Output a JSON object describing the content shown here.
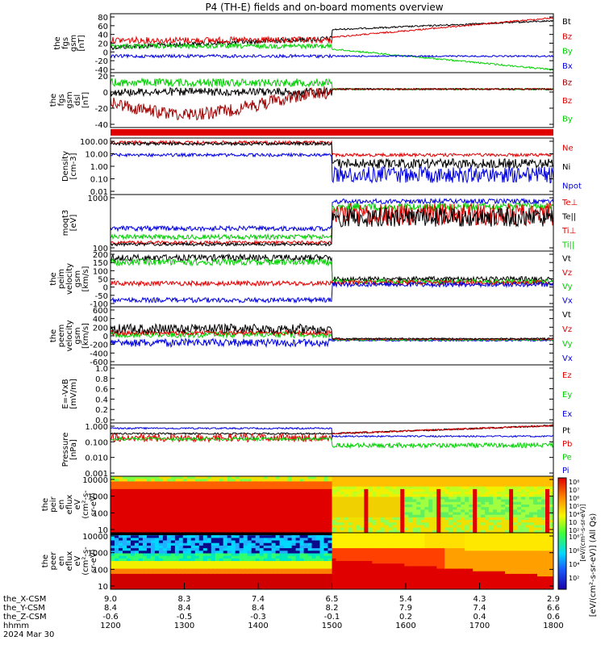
{
  "title": "P4 (TH-E) fields and on-board moments overview",
  "colors": {
    "black": "#000000",
    "red": "#e00000",
    "green": "#00d000",
    "blue": "#0000e0",
    "darkred": "#a00000",
    "frame": "#000000"
  },
  "x_axis": {
    "rows": [
      {
        "label": "the_X-CSM",
        "values": [
          "9.0",
          "8.3",
          "7.4",
          "6.5",
          "5.4",
          "4.3",
          "2.9"
        ]
      },
      {
        "label": "the_Y-CSM",
        "values": [
          "8.4",
          "8.4",
          "8.4",
          "8.2",
          "7.9",
          "7.4",
          "6.6"
        ]
      },
      {
        "label": "the_Z-CSM",
        "values": [
          "-0.6",
          "-0.5",
          "-0.3",
          "-0.1",
          "0.2",
          "0.4",
          "0.6"
        ]
      },
      {
        "label": "hhmm",
        "values": [
          "1200",
          "1300",
          "1400",
          "1500",
          "1600",
          "1700",
          "1800"
        ]
      }
    ],
    "date": "2024 Mar 30",
    "hours": [
      12,
      13,
      14,
      15,
      16,
      17,
      18
    ]
  },
  "colorbar": {
    "ticks": [
      "10⁸",
      "10⁷",
      "10⁶",
      "10⁵",
      "10⁴",
      "10⁳",
      "10²"
    ],
    "ticks_lower": [
      "10⁸",
      "10⁶",
      "10⁴",
      "10²"
    ],
    "label": "[eV/(cm²-s-sr-eV)] (All Qs)",
    "lower_overlay_label": "[eV/(cm²-s-sr-eV)]"
  },
  "chart_data": [
    {
      "type": "line",
      "ylabel": [
        "the",
        "fgs",
        "gsm",
        "[nT]"
      ],
      "yticks": [
        "80",
        "60",
        "40",
        "20",
        "0",
        "-20",
        "-40"
      ],
      "ylim": [
        -40,
        95
      ],
      "series": [
        {
          "name": "Bt",
          "color": "black"
        },
        {
          "name": "Bz",
          "color": "red"
        },
        {
          "name": "By",
          "color": "green"
        },
        {
          "name": "Bx",
          "color": "blue"
        }
      ]
    },
    {
      "type": "line",
      "ylabel": [
        "the",
        "fgs",
        "gsm",
        "dsl",
        "[nT]"
      ],
      "yticks": [
        "20",
        "0",
        "-20",
        "-40"
      ],
      "ylim": [
        -60,
        30
      ],
      "series": [
        {
          "name": "Bz",
          "color": "darkred"
        },
        {
          "name": "Bz",
          "color": "red"
        },
        {
          "name": "By",
          "color": "green"
        }
      ]
    },
    {
      "type": "bar",
      "flag": "red"
    },
    {
      "type": "line",
      "ylabel": [
        "Density",
        "[cm-3]"
      ],
      "yticks": [
        "100.00",
        "10.00",
        "1.00",
        "0.10",
        "0.01"
      ],
      "log": true,
      "series": [
        {
          "name": "Ne",
          "color": "red"
        },
        {
          "name": "Ni",
          "color": "black"
        },
        {
          "name": "Npot",
          "color": "blue"
        }
      ]
    },
    {
      "type": "line",
      "ylabel": [
        "moqt3",
        "[eV]"
      ],
      "yticks": [
        "1000",
        "100"
      ],
      "log": true,
      "series": [
        {
          "name": "Te⊥",
          "color": "red"
        },
        {
          "name": "Te||",
          "color": "black"
        },
        {
          "name": "Ti⊥",
          "color": "red"
        },
        {
          "name": "Ti||",
          "color": "green"
        }
      ]
    },
    {
      "type": "line",
      "ylabel": [
        "the",
        "peim",
        "velocity",
        "gsm",
        "[km/s]"
      ],
      "yticks": [
        "200",
        "150",
        "100",
        "50",
        "0",
        "-50",
        "-100"
      ],
      "series": [
        {
          "name": "Vt",
          "color": "black"
        },
        {
          "name": "Vz",
          "color": "red"
        },
        {
          "name": "Vy",
          "color": "green"
        },
        {
          "name": "Vx",
          "color": "blue"
        }
      ]
    },
    {
      "type": "line",
      "ylabel": [
        "the",
        "peem",
        "velocity",
        "gsm",
        "[km/s]"
      ],
      "yticks": [
        "600",
        "400",
        "200",
        "0",
        "-200",
        "-400",
        "-600"
      ],
      "series": [
        {
          "name": "Vt",
          "color": "black"
        },
        {
          "name": "Vz",
          "color": "red"
        },
        {
          "name": "Vy",
          "color": "green"
        },
        {
          "name": "Vx",
          "color": "blue"
        }
      ]
    },
    {
      "type": "line",
      "ylabel": [
        "E=-VxB",
        "[mV/m]"
      ],
      "yticks": [
        "1.0",
        "0.8",
        "0.6",
        "0.4",
        "0.2",
        "0.0"
      ],
      "series": [
        {
          "name": "Ez",
          "color": "red"
        },
        {
          "name": "Ey",
          "color": "green"
        },
        {
          "name": "Ex",
          "color": "blue"
        }
      ]
    },
    {
      "type": "line",
      "ylabel": [
        "Pressure",
        "[nPa]"
      ],
      "yticks": [
        "1.000",
        "0.100",
        "0.010",
        "0.001"
      ],
      "log": true,
      "series": [
        {
          "name": "Pt",
          "color": "black"
        },
        {
          "name": "Pb",
          "color": "red"
        },
        {
          "name": "Pe",
          "color": "green"
        },
        {
          "name": "Pi",
          "color": "blue"
        }
      ]
    },
    {
      "type": "heatmap",
      "ylabel": [
        "the",
        "peir",
        "en",
        "eflux",
        "eV",
        "(cm²-s-",
        "sr-eV)"
      ],
      "yticks": [
        "10000",
        "1000",
        "100",
        "10"
      ]
    },
    {
      "type": "heatmap",
      "ylabel": [
        "the",
        "peer",
        "en",
        "eflux",
        "eV",
        "(cm²-s-",
        "sr-eV)"
      ],
      "yticks": [
        "10000",
        "1000",
        "100",
        "10"
      ]
    }
  ]
}
